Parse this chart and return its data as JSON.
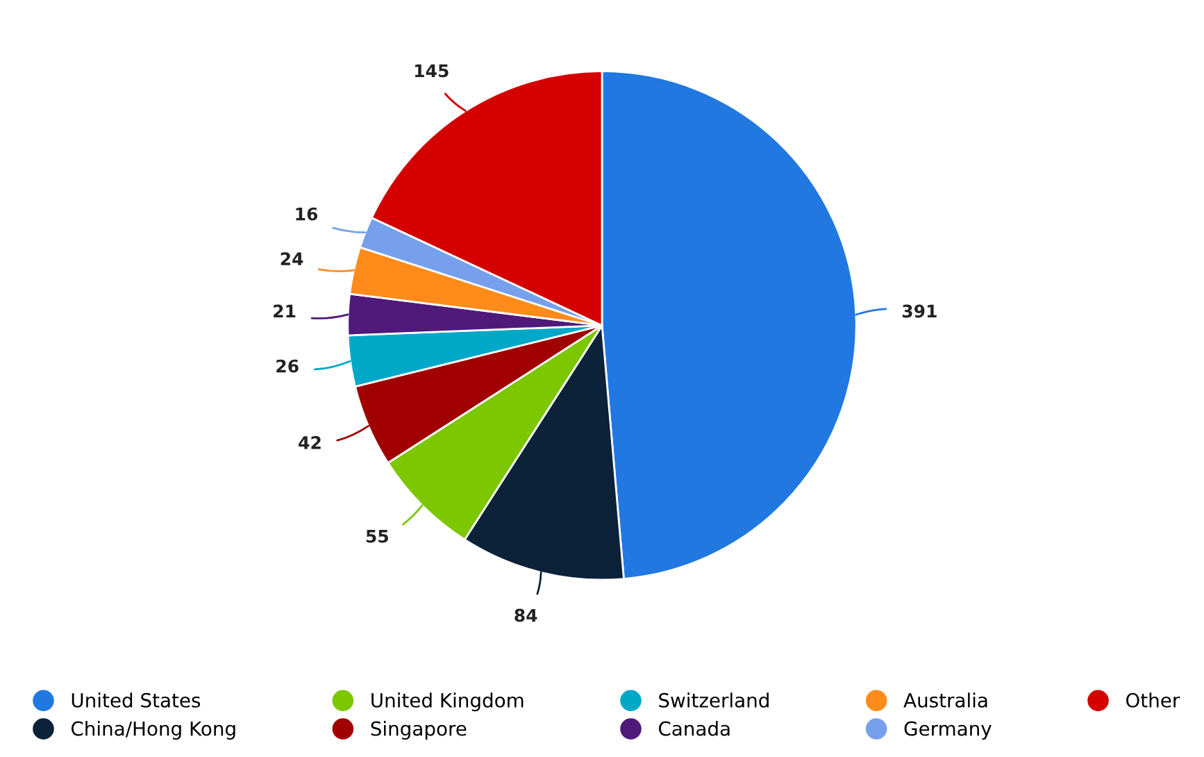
{
  "chart_data": {
    "type": "pie",
    "categories": [
      "United States",
      "China/Hong Kong",
      "United Kingdom",
      "Singapore",
      "Switzerland",
      "Canada",
      "Australia",
      "Germany",
      "Other"
    ],
    "values": [
      391,
      84,
      55,
      42,
      26,
      21,
      24,
      16,
      145
    ],
    "colors": [
      "#2178e0",
      "#0b2239",
      "#7cc700",
      "#a00000",
      "#00a8c8",
      "#4f1a7a",
      "#ff8c1a",
      "#76a0ec",
      "#d40000"
    ],
    "data_labels": true,
    "legend": "bottom"
  }
}
